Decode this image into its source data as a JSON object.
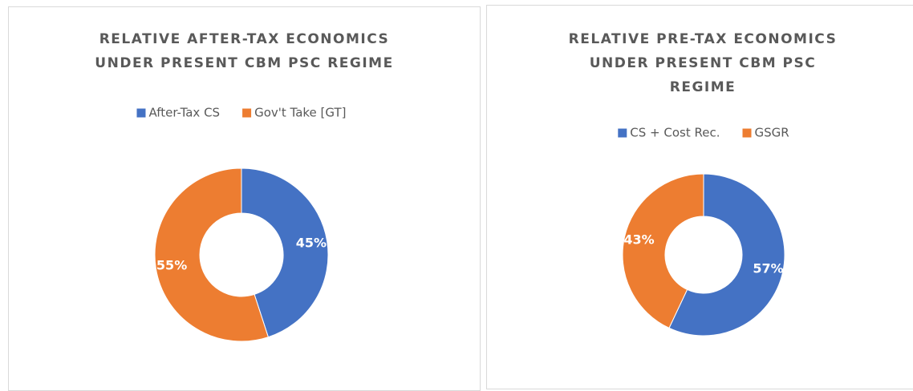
{
  "chart_data": [
    {
      "type": "doughnut",
      "title": "RELATIVE AFTER-TAX ECONOMICS UNDER PRESENT CBM PSC REGIME",
      "categories": [
        "After-Tax CS",
        "Gov't Take [GT]"
      ],
      "values": [
        45,
        55
      ],
      "value_labels": [
        "45%",
        "55%"
      ],
      "colors": [
        "#4472c4",
        "#ed7d31"
      ],
      "legend": "top"
    },
    {
      "type": "doughnut",
      "title": "RELATIVE PRE-TAX ECONOMICS UNDER PRESENT CBM PSC REGIME",
      "categories": [
        "CS + Cost Rec.",
        "GSGR"
      ],
      "values": [
        57,
        43
      ],
      "value_labels": [
        "57%",
        "43%"
      ],
      "colors": [
        "#4472c4",
        "#ed7d31"
      ],
      "legend": "top"
    }
  ]
}
